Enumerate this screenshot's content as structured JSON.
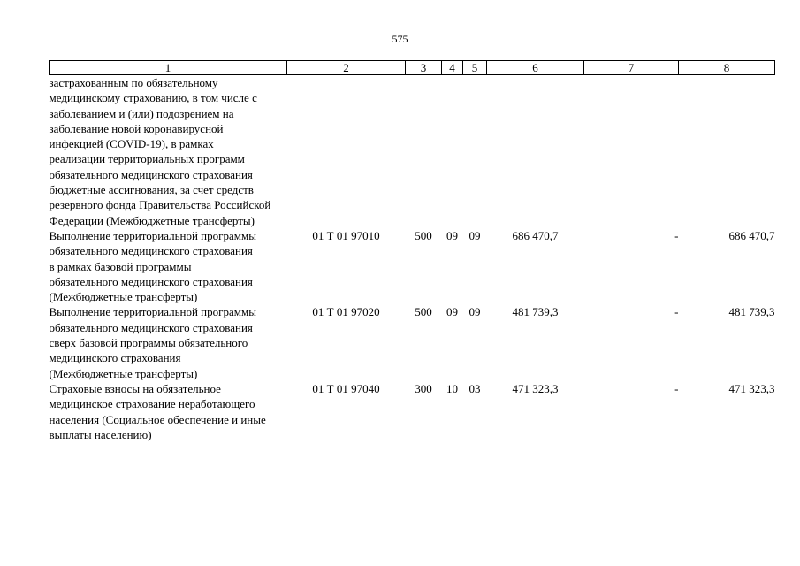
{
  "page_number": "575",
  "header_columns": [
    "1",
    "2",
    "3",
    "4",
    "5",
    "6",
    "7",
    "8"
  ],
  "rows": [
    {
      "name": "застрахованным по обязательному медицинскому страхованию, в том числе с заболеванием и (или) подозрением на заболевание новой коронавирусной инфекцией (COVID-19), в рамках реализации территориальных программ обязательного медицинского страхования бюджетные ассигнования, за счет средств резервного фонда Правительства Российской Федерации (Межбюджетные трансферты)",
      "code": "",
      "c3": "",
      "c4": "",
      "c5": "",
      "c6": "",
      "c7": "",
      "c8": ""
    },
    {
      "name": "Выполнение территориальной программы обязательного медицинского страхования в рамках базовой программы обязательного медицинского страхования (Межбюджетные трансферты)",
      "code": "01 Т 01 97010",
      "c3": "500",
      "c4": "09",
      "c5": "09",
      "c6": "686 470,7",
      "c7": "-",
      "c8": "686 470,7"
    },
    {
      "name": "Выполнение территориальной программы обязательного медицинского страхования сверх базовой программы обязательного медицинского страхования (Межбюджетные трансферты)",
      "code": "01 Т 01 97020",
      "c3": "500",
      "c4": "09",
      "c5": "09",
      "c6": "481 739,3",
      "c7": "-",
      "c8": "481 739,3"
    },
    {
      "name": "Страховые взносы на обязательное медицинское страхование неработающего населения (Социальное обеспечение и иные выплаты населению)",
      "code": "01 Т 01 97040",
      "c3": "300",
      "c4": "10",
      "c5": "03",
      "c6": "471 323,3",
      "c7": "-",
      "c8": "471 323,3"
    }
  ]
}
